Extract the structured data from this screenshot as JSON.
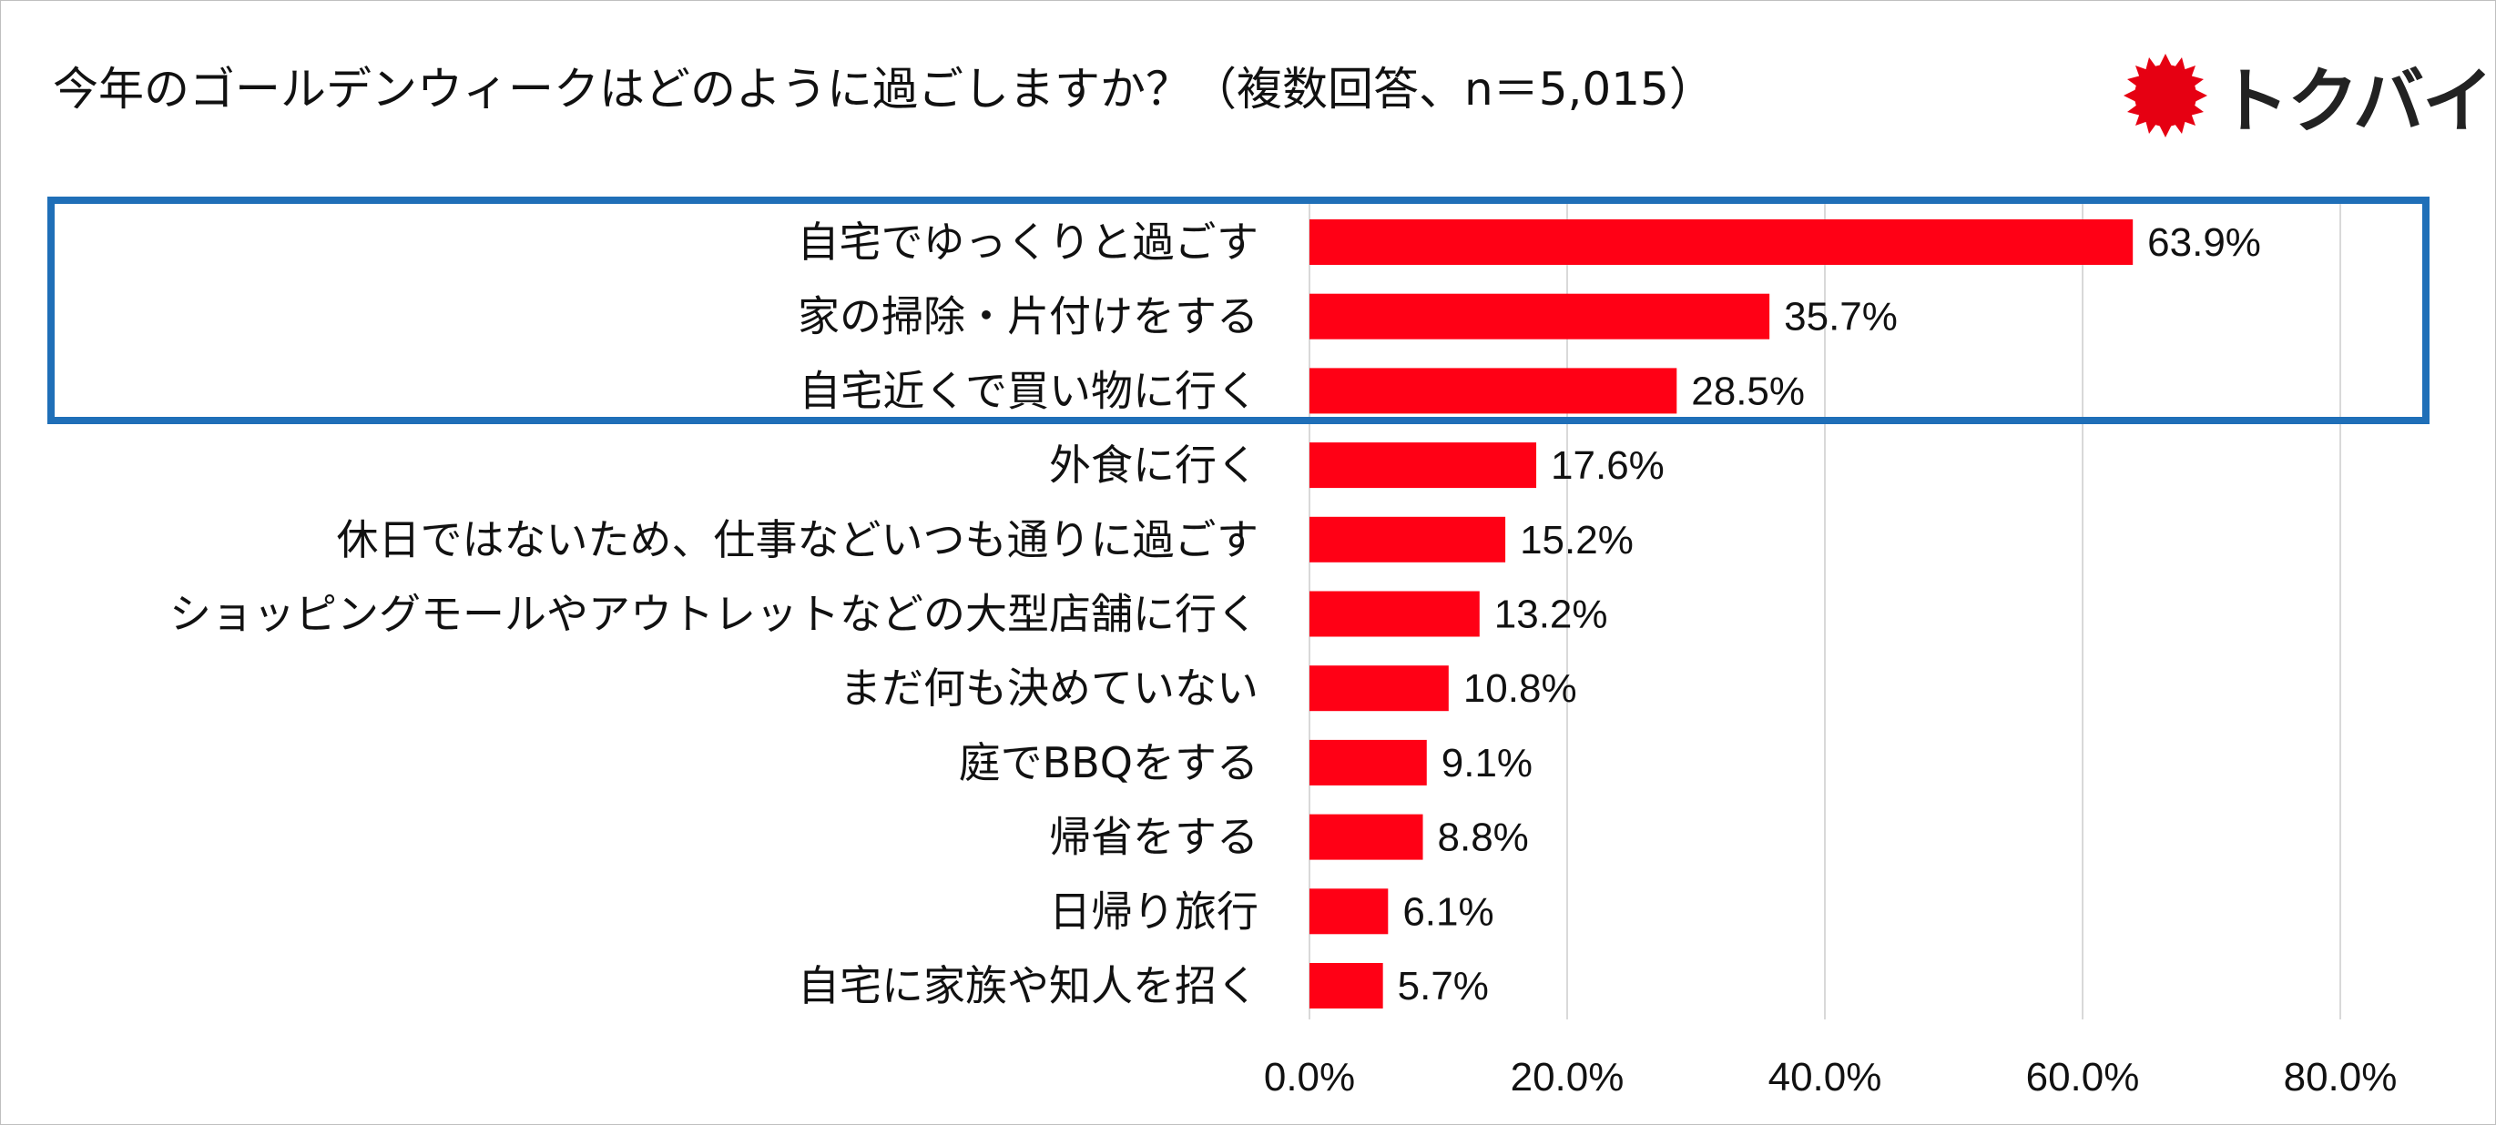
{
  "title": "今年のゴールデンウィークはどのように過ごしますか？（複数回答、n＝5,015）",
  "logo": {
    "text": "トクバイ",
    "icon": "red-sun-badge-icon",
    "color": "#e60012"
  },
  "colors": {
    "bar": "#ff0015",
    "highlight": "#1f6fb8",
    "grid": "#d9d9d9"
  },
  "chart_data": {
    "type": "bar",
    "orientation": "horizontal",
    "title": "今年のゴールデンウィークはどのように過ごしますか？（複数回答、n＝5,015）",
    "xlabel": "",
    "ylabel": "",
    "xlim": [
      0,
      80
    ],
    "ticks": [
      0,
      20,
      40,
      60,
      80
    ],
    "tick_labels": [
      "0.0%",
      "20.0%",
      "40.0%",
      "60.0%",
      "80.0%"
    ],
    "grid": true,
    "categories": [
      "自宅でゆっくりと過ごす",
      "家の掃除・片付けをする",
      "自宅近くで買い物に行く",
      "外食に行く",
      "休日ではないため、仕事などいつも通りに過ごす",
      "ショッピングモールやアウトレットなどの大型店舗に行く",
      "まだ何も決めていない",
      "庭でBBQをする",
      "帰省をする",
      "日帰り旅行",
      "自宅に家族や知人を招く"
    ],
    "values": [
      63.9,
      35.7,
      28.5,
      17.6,
      15.2,
      13.2,
      10.8,
      9.1,
      8.8,
      6.1,
      5.7
    ],
    "value_labels": [
      "63.9%",
      "35.7%",
      "28.5%",
      "17.6%",
      "15.2%",
      "13.2%",
      "10.8%",
      "9.1%",
      "8.8%",
      "6.1%",
      "5.7%"
    ],
    "highlighted_categories": [
      0,
      1,
      2
    ]
  }
}
